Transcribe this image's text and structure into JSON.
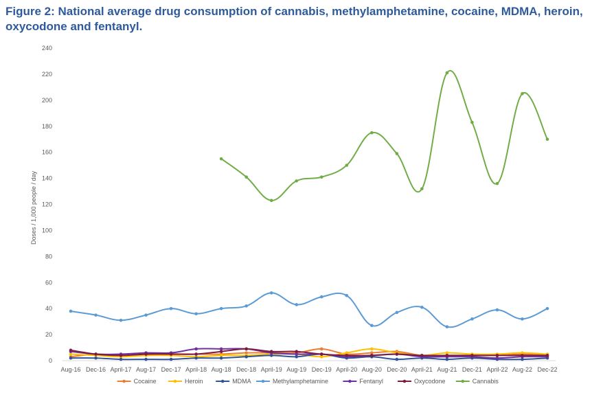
{
  "page": {
    "title": "Figure 2: National average drug consumption of cannabis, methylamphetamine, cocaine, MDMA, heroin, oxycodone and fentanyl."
  },
  "chart_data": {
    "type": "line",
    "title": "Figure 2: National average drug consumption of cannabis, methylamphetamine, cocaine, MDMA, heroin, oxycodone and fentanyl.",
    "xlabel": "",
    "ylabel": "Doses / 1,000 people / day",
    "ylim": [
      0,
      240
    ],
    "yticks": [
      0,
      20,
      40,
      60,
      80,
      100,
      120,
      140,
      160,
      180,
      200,
      220,
      240
    ],
    "grid": false,
    "legend": "bottom",
    "categories": [
      "Aug-16",
      "Dec-16",
      "April-17",
      "Aug-17",
      "Dec-17",
      "April-18",
      "Aug-18",
      "Dec-18",
      "April-19",
      "Aug-19",
      "Dec-19",
      "April-20",
      "Aug-20",
      "Dec-20",
      "April-21",
      "Aug-21",
      "Dec-21",
      "April-22",
      "Aug-22",
      "Dec-22"
    ],
    "series": [
      {
        "name": "Cocaine",
        "color": "#ed7d31",
        "values": [
          3,
          5,
          4,
          4,
          5,
          5,
          5,
          6,
          6,
          6,
          9,
          5,
          6,
          7,
          4,
          4,
          4,
          4,
          5,
          4
        ]
      },
      {
        "name": "Heroin",
        "color": "#ffc000",
        "values": [
          5,
          4,
          3,
          4,
          4,
          3,
          4,
          4,
          5,
          5,
          3,
          6,
          9,
          6,
          4,
          6,
          5,
          5,
          6,
          5
        ]
      },
      {
        "name": "MDMA",
        "color": "#2f5597",
        "values": [
          2,
          2,
          1,
          1,
          1,
          2,
          2,
          3,
          4,
          3,
          5,
          2,
          3,
          1,
          2,
          1,
          2,
          1,
          1,
          2
        ]
      },
      {
        "name": "Methylamphetamine",
        "color": "#5b9bd5",
        "values": [
          38,
          35,
          31,
          35,
          40,
          36,
          40,
          42,
          52,
          43,
          49,
          50,
          27,
          37,
          41,
          26,
          32,
          39,
          32,
          40
        ]
      },
      {
        "name": "Fentanyl",
        "color": "#7030a0",
        "values": [
          7,
          5,
          5,
          6,
          6,
          9,
          9,
          9,
          6,
          5,
          5,
          3,
          4,
          5,
          3,
          3,
          3,
          2,
          3,
          3
        ]
      },
      {
        "name": "Oxycodone",
        "color": "#7b1c41",
        "values": [
          8,
          5,
          4,
          5,
          5,
          5,
          7,
          9,
          7,
          7,
          5,
          4,
          4,
          5,
          4,
          4,
          4,
          4,
          4,
          4
        ]
      },
      {
        "name": "Cannabis",
        "color": "#70ad47",
        "values": [
          null,
          null,
          null,
          null,
          null,
          null,
          155,
          141,
          123,
          138,
          141,
          150,
          175,
          159,
          132,
          221,
          183,
          136,
          205,
          170
        ]
      }
    ]
  }
}
